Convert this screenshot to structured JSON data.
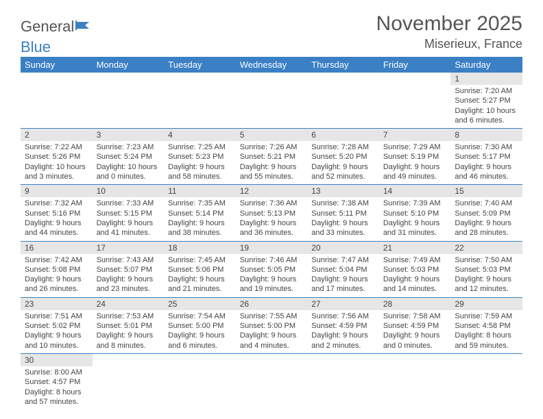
{
  "logo": {
    "part1": "General",
    "part2": "Blue"
  },
  "header": {
    "title": "November 2025",
    "location": "Miserieux, France"
  },
  "colors": {
    "accent": "#3b7fc4",
    "daynum_bg": "#e6e6e6",
    "text": "#444444"
  },
  "daynames": [
    "Sunday",
    "Monday",
    "Tuesday",
    "Wednesday",
    "Thursday",
    "Friday",
    "Saturday"
  ],
  "weeks": [
    [
      null,
      null,
      null,
      null,
      null,
      null,
      {
        "n": "1",
        "sr": "Sunrise: 7:20 AM",
        "ss": "Sunset: 5:27 PM",
        "d1": "Daylight: 10 hours",
        "d2": "and 6 minutes."
      }
    ],
    [
      {
        "n": "2",
        "sr": "Sunrise: 7:22 AM",
        "ss": "Sunset: 5:26 PM",
        "d1": "Daylight: 10 hours",
        "d2": "and 3 minutes."
      },
      {
        "n": "3",
        "sr": "Sunrise: 7:23 AM",
        "ss": "Sunset: 5:24 PM",
        "d1": "Daylight: 10 hours",
        "d2": "and 0 minutes."
      },
      {
        "n": "4",
        "sr": "Sunrise: 7:25 AM",
        "ss": "Sunset: 5:23 PM",
        "d1": "Daylight: 9 hours",
        "d2": "and 58 minutes."
      },
      {
        "n": "5",
        "sr": "Sunrise: 7:26 AM",
        "ss": "Sunset: 5:21 PM",
        "d1": "Daylight: 9 hours",
        "d2": "and 55 minutes."
      },
      {
        "n": "6",
        "sr": "Sunrise: 7:28 AM",
        "ss": "Sunset: 5:20 PM",
        "d1": "Daylight: 9 hours",
        "d2": "and 52 minutes."
      },
      {
        "n": "7",
        "sr": "Sunrise: 7:29 AM",
        "ss": "Sunset: 5:19 PM",
        "d1": "Daylight: 9 hours",
        "d2": "and 49 minutes."
      },
      {
        "n": "8",
        "sr": "Sunrise: 7:30 AM",
        "ss": "Sunset: 5:17 PM",
        "d1": "Daylight: 9 hours",
        "d2": "and 46 minutes."
      }
    ],
    [
      {
        "n": "9",
        "sr": "Sunrise: 7:32 AM",
        "ss": "Sunset: 5:16 PM",
        "d1": "Daylight: 9 hours",
        "d2": "and 44 minutes."
      },
      {
        "n": "10",
        "sr": "Sunrise: 7:33 AM",
        "ss": "Sunset: 5:15 PM",
        "d1": "Daylight: 9 hours",
        "d2": "and 41 minutes."
      },
      {
        "n": "11",
        "sr": "Sunrise: 7:35 AM",
        "ss": "Sunset: 5:14 PM",
        "d1": "Daylight: 9 hours",
        "d2": "and 38 minutes."
      },
      {
        "n": "12",
        "sr": "Sunrise: 7:36 AM",
        "ss": "Sunset: 5:13 PM",
        "d1": "Daylight: 9 hours",
        "d2": "and 36 minutes."
      },
      {
        "n": "13",
        "sr": "Sunrise: 7:38 AM",
        "ss": "Sunset: 5:11 PM",
        "d1": "Daylight: 9 hours",
        "d2": "and 33 minutes."
      },
      {
        "n": "14",
        "sr": "Sunrise: 7:39 AM",
        "ss": "Sunset: 5:10 PM",
        "d1": "Daylight: 9 hours",
        "d2": "and 31 minutes."
      },
      {
        "n": "15",
        "sr": "Sunrise: 7:40 AM",
        "ss": "Sunset: 5:09 PM",
        "d1": "Daylight: 9 hours",
        "d2": "and 28 minutes."
      }
    ],
    [
      {
        "n": "16",
        "sr": "Sunrise: 7:42 AM",
        "ss": "Sunset: 5:08 PM",
        "d1": "Daylight: 9 hours",
        "d2": "and 26 minutes."
      },
      {
        "n": "17",
        "sr": "Sunrise: 7:43 AM",
        "ss": "Sunset: 5:07 PM",
        "d1": "Daylight: 9 hours",
        "d2": "and 23 minutes."
      },
      {
        "n": "18",
        "sr": "Sunrise: 7:45 AM",
        "ss": "Sunset: 5:06 PM",
        "d1": "Daylight: 9 hours",
        "d2": "and 21 minutes."
      },
      {
        "n": "19",
        "sr": "Sunrise: 7:46 AM",
        "ss": "Sunset: 5:05 PM",
        "d1": "Daylight: 9 hours",
        "d2": "and 19 minutes."
      },
      {
        "n": "20",
        "sr": "Sunrise: 7:47 AM",
        "ss": "Sunset: 5:04 PM",
        "d1": "Daylight: 9 hours",
        "d2": "and 17 minutes."
      },
      {
        "n": "21",
        "sr": "Sunrise: 7:49 AM",
        "ss": "Sunset: 5:03 PM",
        "d1": "Daylight: 9 hours",
        "d2": "and 14 minutes."
      },
      {
        "n": "22",
        "sr": "Sunrise: 7:50 AM",
        "ss": "Sunset: 5:03 PM",
        "d1": "Daylight: 9 hours",
        "d2": "and 12 minutes."
      }
    ],
    [
      {
        "n": "23",
        "sr": "Sunrise: 7:51 AM",
        "ss": "Sunset: 5:02 PM",
        "d1": "Daylight: 9 hours",
        "d2": "and 10 minutes."
      },
      {
        "n": "24",
        "sr": "Sunrise: 7:53 AM",
        "ss": "Sunset: 5:01 PM",
        "d1": "Daylight: 9 hours",
        "d2": "and 8 minutes."
      },
      {
        "n": "25",
        "sr": "Sunrise: 7:54 AM",
        "ss": "Sunset: 5:00 PM",
        "d1": "Daylight: 9 hours",
        "d2": "and 6 minutes."
      },
      {
        "n": "26",
        "sr": "Sunrise: 7:55 AM",
        "ss": "Sunset: 5:00 PM",
        "d1": "Daylight: 9 hours",
        "d2": "and 4 minutes."
      },
      {
        "n": "27",
        "sr": "Sunrise: 7:56 AM",
        "ss": "Sunset: 4:59 PM",
        "d1": "Daylight: 9 hours",
        "d2": "and 2 minutes."
      },
      {
        "n": "28",
        "sr": "Sunrise: 7:58 AM",
        "ss": "Sunset: 4:59 PM",
        "d1": "Daylight: 9 hours",
        "d2": "and 0 minutes."
      },
      {
        "n": "29",
        "sr": "Sunrise: 7:59 AM",
        "ss": "Sunset: 4:58 PM",
        "d1": "Daylight: 8 hours",
        "d2": "and 59 minutes."
      }
    ],
    [
      {
        "n": "30",
        "sr": "Sunrise: 8:00 AM",
        "ss": "Sunset: 4:57 PM",
        "d1": "Daylight: 8 hours",
        "d2": "and 57 minutes."
      },
      null,
      null,
      null,
      null,
      null,
      null
    ]
  ]
}
